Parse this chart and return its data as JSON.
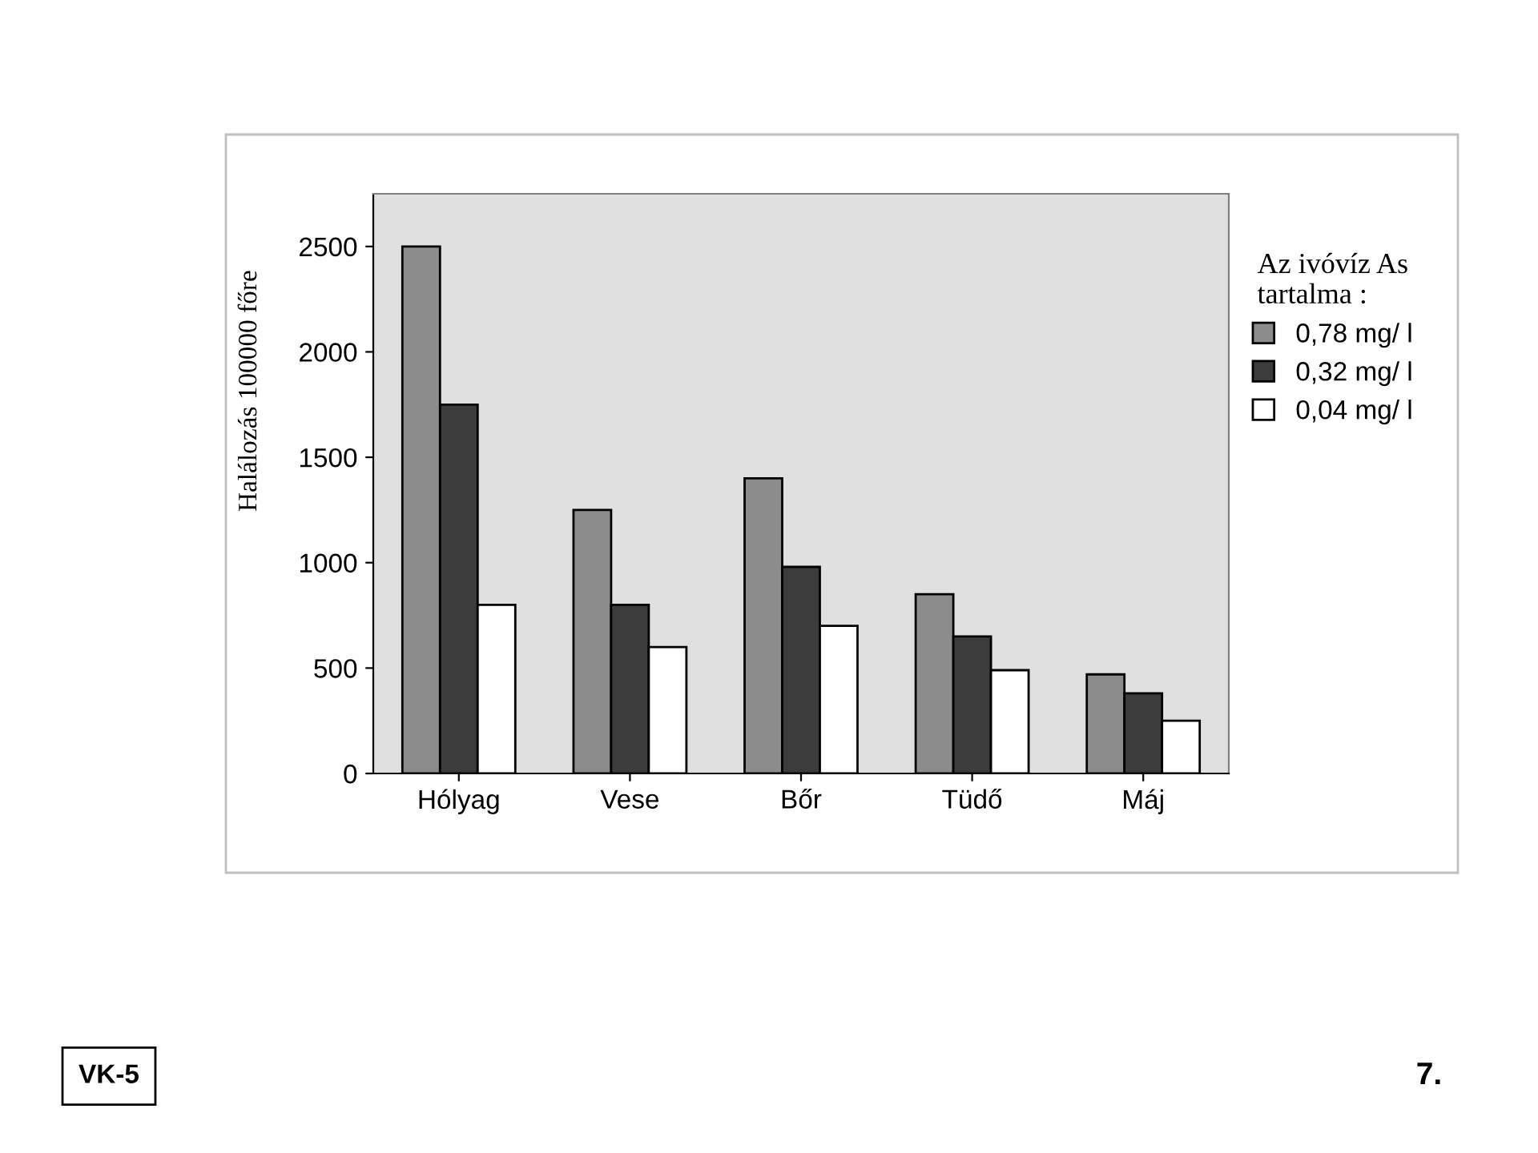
{
  "chart_data": {
    "type": "bar",
    "ylabel": "Halálozás 100000 főre",
    "legend_title": "Az ivóvíz As\ntartalma :",
    "categories": [
      "Hólyag",
      "Vese",
      "Bőr",
      "Tüdő",
      "Máj"
    ],
    "series": [
      {
        "name": "0,78 mg/ l",
        "color": "#8c8c8c",
        "values": [
          2500,
          1250,
          1400,
          850,
          470
        ]
      },
      {
        "name": "0,32 mg/ l",
        "color": "#3c3c3c",
        "values": [
          1750,
          800,
          980,
          650,
          380
        ]
      },
      {
        "name": "0,04 mg/ l",
        "color": "#ffffff",
        "values": [
          800,
          600,
          700,
          490,
          250
        ]
      }
    ],
    "ylim": [
      0,
      2750
    ],
    "yticks": [
      0,
      500,
      1000,
      1500,
      2000,
      2500
    ],
    "grid": false,
    "legend": "right",
    "annotations": [
      "VK-5",
      "7."
    ]
  }
}
